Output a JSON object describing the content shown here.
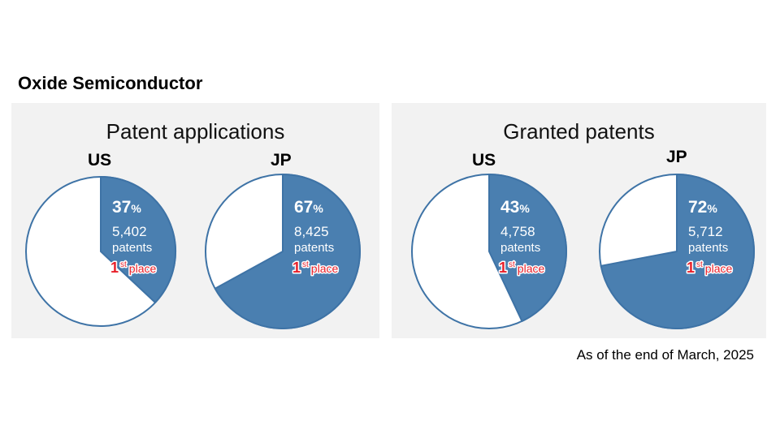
{
  "title": "Oxide Semiconductor",
  "footnote": "As of the end of March, 2025",
  "colors": {
    "filled": "#4a7fb0",
    "empty": "#ffffff",
    "outline": "#3e73a6",
    "panel": "#f2f2f2",
    "place": "#e8202a"
  },
  "chart_data": [
    {
      "type": "pie",
      "title": "Patent applications",
      "pies": [
        {
          "label": "US",
          "percent": 37,
          "pct_suffix": "%",
          "count": "5,402",
          "unit": "patents",
          "rank_num": "1",
          "rank_sup": "st",
          "rank_word": "place"
        },
        {
          "label": "JP",
          "percent": 67,
          "pct_suffix": "%",
          "count": "8,425",
          "unit": "patents",
          "rank_num": "1",
          "rank_sup": "st",
          "rank_word": "place"
        }
      ]
    },
    {
      "type": "pie",
      "title": "Granted patents",
      "pies": [
        {
          "label": "US",
          "percent": 43,
          "pct_suffix": "%",
          "count": "4,758",
          "unit": "patents",
          "rank_num": "1",
          "rank_sup": "st",
          "rank_word": "place"
        },
        {
          "label": "JP",
          "percent": 72,
          "pct_suffix": "%",
          "count": "5,712",
          "unit": "patents",
          "rank_num": "1",
          "rank_sup": "st",
          "rank_word": "place"
        }
      ]
    }
  ]
}
